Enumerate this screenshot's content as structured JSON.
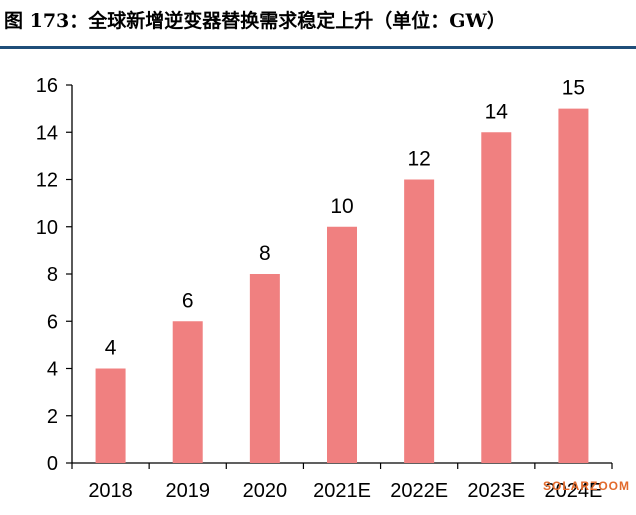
{
  "figure": {
    "title": "图 173：全球新增逆变器替换需求稳定上升（单位：GW）",
    "watermark": "SOLARZOOM",
    "rule_color": "#1f4e79",
    "bar_color": "#f08080"
  },
  "chart_data": {
    "type": "bar",
    "categories": [
      "2018",
      "2019",
      "2020",
      "2021E",
      "2022E",
      "2023E",
      "2024E"
    ],
    "values": [
      4,
      6,
      8,
      10,
      12,
      14,
      15
    ],
    "ylim": [
      0,
      16
    ],
    "yticks": [
      0,
      2,
      4,
      6,
      8,
      10,
      12,
      14,
      16
    ],
    "grid": false,
    "legend": "none"
  }
}
